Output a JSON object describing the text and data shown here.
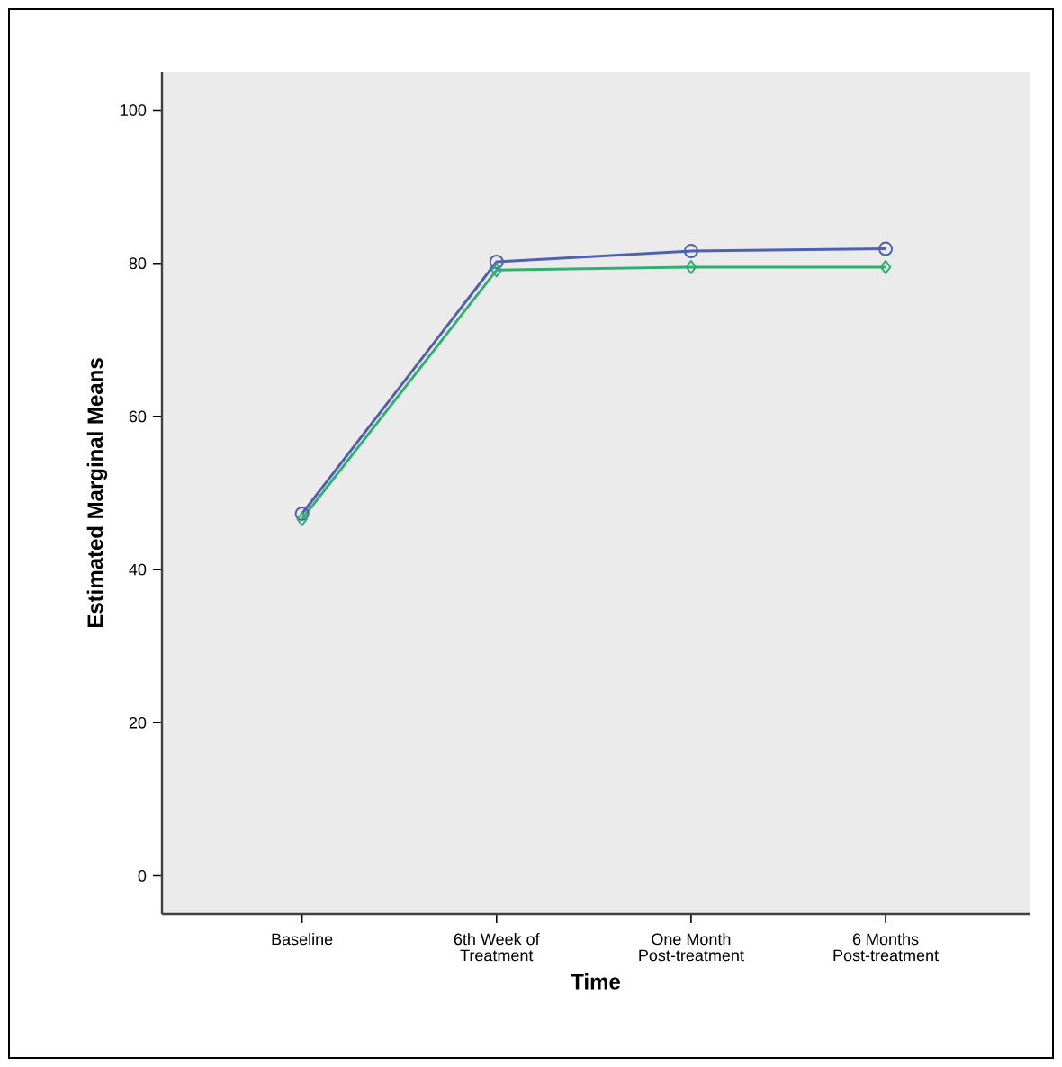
{
  "chart_data": {
    "type": "line",
    "xlabel": "Time",
    "ylabel": "Estimated Marginal Means",
    "categories": [
      "Baseline",
      "6th Week of Treatment",
      "One Month Post-treatment",
      "6 Months Post-treatment"
    ],
    "series": [
      {
        "color": "#5060b0",
        "marker": "circle",
        "values": [
          47.3,
          80.2,
          81.6,
          81.9
        ]
      },
      {
        "color": "#30b070",
        "marker": "diamond",
        "values": [
          46.6,
          79.1,
          79.5,
          79.5
        ]
      }
    ],
    "ylim": [
      -5,
      105
    ],
    "yticks": [
      0,
      20,
      40,
      60,
      80,
      100
    ],
    "grid": false
  }
}
